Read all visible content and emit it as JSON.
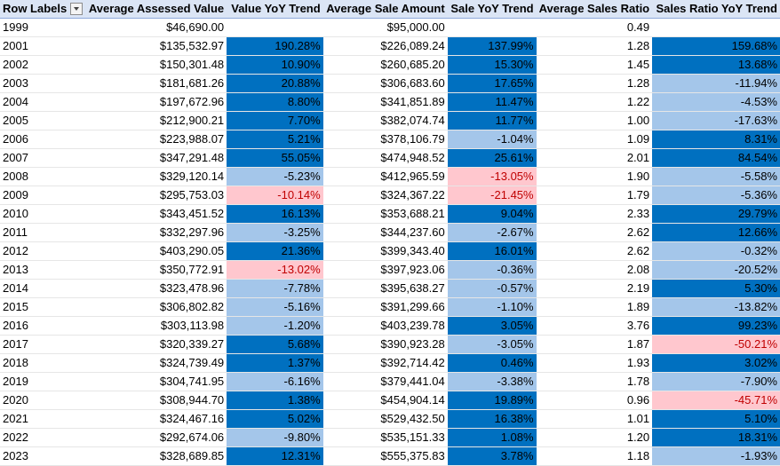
{
  "headers": {
    "row_labels": "Row Labels",
    "avg_assessed": "Average Assessed Value",
    "value_yoy": "Value YoY Trend",
    "avg_sale": "Average Sale Amount",
    "sale_yoy": "Sale YoY Trend",
    "avg_ratio": "Average Sales Ratio",
    "ratio_yoy": "Sales Ratio YoY Trend"
  },
  "colors": {
    "increase": "#0070c0",
    "small_decrease": "#a4c6ea",
    "large_decrease_fill": "#ffc7ce",
    "large_decrease_text": "#c00000"
  },
  "rows": [
    {
      "year": "1999",
      "assessed": "$46,690.00",
      "value_yoy": "",
      "value_cls": "",
      "sale": "$95,000.00",
      "sale_yoy": "",
      "sale_cls": "",
      "ratio": "0.49",
      "ratio_yoy": "",
      "ratio_cls": ""
    },
    {
      "year": "2001",
      "assessed": "$135,532.97",
      "value_yoy": "190.28%",
      "value_cls": "up",
      "sale": "$226,089.24",
      "sale_yoy": "137.99%",
      "sale_cls": "up",
      "ratio": "1.28",
      "ratio_yoy": "159.68%",
      "ratio_cls": "up"
    },
    {
      "year": "2002",
      "assessed": "$150,301.48",
      "value_yoy": "10.90%",
      "value_cls": "up",
      "sale": "$260,685.20",
      "sale_yoy": "15.30%",
      "sale_cls": "up",
      "ratio": "1.45",
      "ratio_yoy": "13.68%",
      "ratio_cls": "up"
    },
    {
      "year": "2003",
      "assessed": "$181,681.26",
      "value_yoy": "20.88%",
      "value_cls": "up",
      "sale": "$306,683.60",
      "sale_yoy": "17.65%",
      "sale_cls": "up",
      "ratio": "1.28",
      "ratio_yoy": "-11.94%",
      "ratio_cls": "down-light"
    },
    {
      "year": "2004",
      "assessed": "$197,672.96",
      "value_yoy": "8.80%",
      "value_cls": "up",
      "sale": "$341,851.89",
      "sale_yoy": "11.47%",
      "sale_cls": "up",
      "ratio": "1.22",
      "ratio_yoy": "-4.53%",
      "ratio_cls": "down-light"
    },
    {
      "year": "2005",
      "assessed": "$212,900.21",
      "value_yoy": "7.70%",
      "value_cls": "up",
      "sale": "$382,074.74",
      "sale_yoy": "11.77%",
      "sale_cls": "up",
      "ratio": "1.00",
      "ratio_yoy": "-17.63%",
      "ratio_cls": "down-light"
    },
    {
      "year": "2006",
      "assessed": "$223,988.07",
      "value_yoy": "5.21%",
      "value_cls": "up",
      "sale": "$378,106.79",
      "sale_yoy": "-1.04%",
      "sale_cls": "down-light",
      "ratio": "1.09",
      "ratio_yoy": "8.31%",
      "ratio_cls": "up"
    },
    {
      "year": "2007",
      "assessed": "$347,291.48",
      "value_yoy": "55.05%",
      "value_cls": "up",
      "sale": "$474,948.52",
      "sale_yoy": "25.61%",
      "sale_cls": "up",
      "ratio": "2.01",
      "ratio_yoy": "84.54%",
      "ratio_cls": "up"
    },
    {
      "year": "2008",
      "assessed": "$329,120.14",
      "value_yoy": "-5.23%",
      "value_cls": "down-light",
      "sale": "$412,965.59",
      "sale_yoy": "-13.05%",
      "sale_cls": "down-heavy",
      "ratio": "1.90",
      "ratio_yoy": "-5.58%",
      "ratio_cls": "down-light"
    },
    {
      "year": "2009",
      "assessed": "$295,753.03",
      "value_yoy": "-10.14%",
      "value_cls": "down-heavy",
      "sale": "$324,367.22",
      "sale_yoy": "-21.45%",
      "sale_cls": "down-heavy",
      "ratio": "1.79",
      "ratio_yoy": "-5.36%",
      "ratio_cls": "down-light"
    },
    {
      "year": "2010",
      "assessed": "$343,451.52",
      "value_yoy": "16.13%",
      "value_cls": "up",
      "sale": "$353,688.21",
      "sale_yoy": "9.04%",
      "sale_cls": "up",
      "ratio": "2.33",
      "ratio_yoy": "29.79%",
      "ratio_cls": "up"
    },
    {
      "year": "2011",
      "assessed": "$332,297.96",
      "value_yoy": "-3.25%",
      "value_cls": "down-light",
      "sale": "$344,237.60",
      "sale_yoy": "-2.67%",
      "sale_cls": "down-light",
      "ratio": "2.62",
      "ratio_yoy": "12.66%",
      "ratio_cls": "up"
    },
    {
      "year": "2012",
      "assessed": "$403,290.05",
      "value_yoy": "21.36%",
      "value_cls": "up",
      "sale": "$399,343.40",
      "sale_yoy": "16.01%",
      "sale_cls": "up",
      "ratio": "2.62",
      "ratio_yoy": "-0.32%",
      "ratio_cls": "down-light"
    },
    {
      "year": "2013",
      "assessed": "$350,772.91",
      "value_yoy": "-13.02%",
      "value_cls": "down-heavy",
      "sale": "$397,923.06",
      "sale_yoy": "-0.36%",
      "sale_cls": "down-light",
      "ratio": "2.08",
      "ratio_yoy": "-20.52%",
      "ratio_cls": "down-light"
    },
    {
      "year": "2014",
      "assessed": "$323,478.96",
      "value_yoy": "-7.78%",
      "value_cls": "down-light",
      "sale": "$395,638.27",
      "sale_yoy": "-0.57%",
      "sale_cls": "down-light",
      "ratio": "2.19",
      "ratio_yoy": "5.30%",
      "ratio_cls": "up"
    },
    {
      "year": "2015",
      "assessed": "$306,802.82",
      "value_yoy": "-5.16%",
      "value_cls": "down-light",
      "sale": "$391,299.66",
      "sale_yoy": "-1.10%",
      "sale_cls": "down-light",
      "ratio": "1.89",
      "ratio_yoy": "-13.82%",
      "ratio_cls": "down-light"
    },
    {
      "year": "2016",
      "assessed": "$303,113.98",
      "value_yoy": "-1.20%",
      "value_cls": "down-light",
      "sale": "$403,239.78",
      "sale_yoy": "3.05%",
      "sale_cls": "up",
      "ratio": "3.76",
      "ratio_yoy": "99.23%",
      "ratio_cls": "up"
    },
    {
      "year": "2017",
      "assessed": "$320,339.27",
      "value_yoy": "5.68%",
      "value_cls": "up",
      "sale": "$390,923.28",
      "sale_yoy": "-3.05%",
      "sale_cls": "down-light",
      "ratio": "1.87",
      "ratio_yoy": "-50.21%",
      "ratio_cls": "down-heavy"
    },
    {
      "year": "2018",
      "assessed": "$324,739.49",
      "value_yoy": "1.37%",
      "value_cls": "up",
      "sale": "$392,714.42",
      "sale_yoy": "0.46%",
      "sale_cls": "up",
      "ratio": "1.93",
      "ratio_yoy": "3.02%",
      "ratio_cls": "up"
    },
    {
      "year": "2019",
      "assessed": "$304,741.95",
      "value_yoy": "-6.16%",
      "value_cls": "down-light",
      "sale": "$379,441.04",
      "sale_yoy": "-3.38%",
      "sale_cls": "down-light",
      "ratio": "1.78",
      "ratio_yoy": "-7.90%",
      "ratio_cls": "down-light"
    },
    {
      "year": "2020",
      "assessed": "$308,944.70",
      "value_yoy": "1.38%",
      "value_cls": "up",
      "sale": "$454,904.14",
      "sale_yoy": "19.89%",
      "sale_cls": "up",
      "ratio": "0.96",
      "ratio_yoy": "-45.71%",
      "ratio_cls": "down-heavy"
    },
    {
      "year": "2021",
      "assessed": "$324,467.16",
      "value_yoy": "5.02%",
      "value_cls": "up",
      "sale": "$529,432.50",
      "sale_yoy": "16.38%",
      "sale_cls": "up",
      "ratio": "1.01",
      "ratio_yoy": "5.10%",
      "ratio_cls": "up"
    },
    {
      "year": "2022",
      "assessed": "$292,674.06",
      "value_yoy": "-9.80%",
      "value_cls": "down-light",
      "sale": "$535,151.33",
      "sale_yoy": "1.08%",
      "sale_cls": "up",
      "ratio": "1.20",
      "ratio_yoy": "18.31%",
      "ratio_cls": "up"
    },
    {
      "year": "2023",
      "assessed": "$328,689.85",
      "value_yoy": "12.31%",
      "value_cls": "up",
      "sale": "$555,375.83",
      "sale_yoy": "3.78%",
      "sale_cls": "up",
      "ratio": "1.18",
      "ratio_yoy": "-1.93%",
      "ratio_cls": "down-light"
    }
  ]
}
